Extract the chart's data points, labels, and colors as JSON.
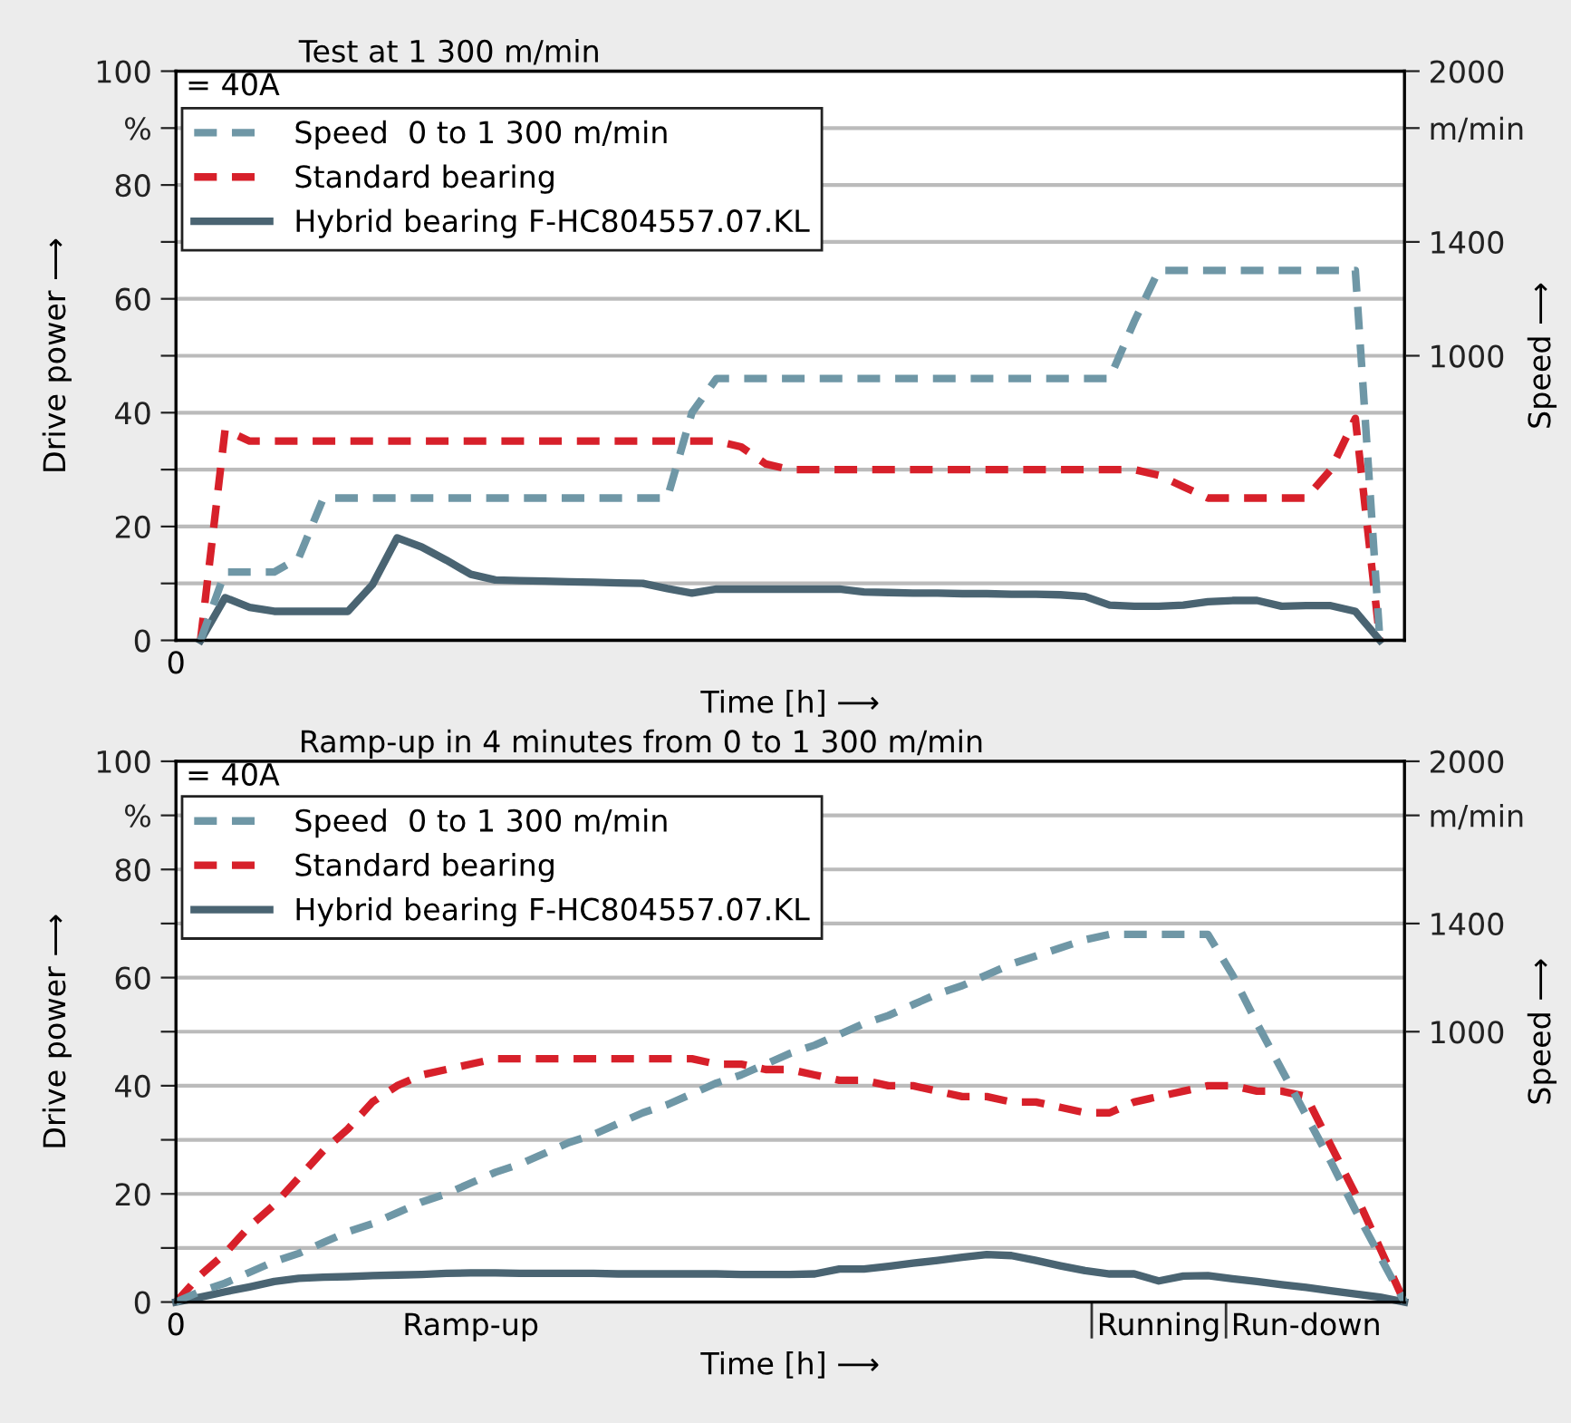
{
  "chart_data": [
    {
      "type": "line",
      "title": "Test at 1 300 m/min",
      "xlabel": "Time [h] ⟶",
      "ylabel": "Drive power ⟶",
      "y2label": "Speed ⟶",
      "annotations": [
        "= 40A"
      ],
      "categories": [
        "0",
        null,
        null,
        null,
        null,
        null,
        null,
        null,
        null,
        null,
        null,
        null,
        null,
        null,
        null,
        null,
        null,
        null,
        null,
        null,
        null,
        null,
        null,
        null,
        null,
        null,
        null,
        null,
        null,
        null,
        null,
        null,
        null,
        null,
        null,
        null,
        null,
        null,
        null,
        null,
        null,
        null,
        null,
        null,
        null,
        null,
        null,
        null,
        null,
        null,
        null
      ],
      "ylim": [
        0,
        100
      ],
      "yticks": [
        0,
        {
          "value": 10,
          "label": null
        },
        20,
        {
          "value": 30,
          "label": null
        },
        40,
        {
          "value": 50,
          "label": null
        },
        60,
        {
          "value": 70,
          "label": null
        },
        80,
        {
          "value": 90,
          "label": "%"
        },
        100
      ],
      "y2lim": [
        0,
        2000
      ],
      "y2ticks": [
        1000,
        1400,
        {
          "value": 1800,
          "label": "m/min"
        },
        2000
      ],
      "grid": "y",
      "legend": "top left",
      "series": [
        {
          "name": "Speed  0 to 1 300 m/min",
          "color": "#6f97a6",
          "line_style": "dashed",
          "axis": "y2",
          "values": [
            null,
            0,
            240,
            240,
            240,
            290,
            500,
            500,
            500,
            500,
            500,
            500,
            500,
            500,
            500,
            500,
            500,
            500,
            500,
            500,
            500,
            800,
            920,
            920,
            920,
            920,
            920,
            920,
            920,
            920,
            920,
            920,
            920,
            920,
            920,
            920,
            920,
            920,
            920,
            1120,
            1300,
            1300,
            1300,
            1300,
            1300,
            1300,
            1300,
            1300,
            1300,
            0,
            null
          ]
        },
        {
          "name": "Standard bearing",
          "color": "#d7202a",
          "line_style": "dashed",
          "values": [
            null,
            0,
            37,
            35,
            35,
            35,
            35,
            35,
            35,
            35,
            35,
            35,
            35,
            35,
            35,
            35,
            35,
            35,
            35,
            35,
            35,
            35,
            35,
            34,
            31,
            30,
            30,
            30,
            30,
            30,
            30,
            30,
            30,
            30,
            30,
            30,
            30,
            30,
            30,
            30,
            29,
            27,
            25,
            25,
            25,
            25,
            25,
            30,
            39,
            0,
            null
          ]
        },
        {
          "name": "Hybrid bearing F-HC804557.07.KL",
          "color": "#4a6472",
          "line_style": "solid",
          "values": [
            null,
            0,
            7.5,
            5.8,
            5.1,
            5.1,
            5.1,
            5.1,
            9.8,
            18,
            16.4,
            14.1,
            11.6,
            10.6,
            10.5,
            10.4,
            10.3,
            10.2,
            10.1,
            10,
            9.1,
            8.3,
            9,
            9,
            9,
            9,
            9,
            9,
            8.5,
            8.4,
            8.3,
            8.3,
            8.2,
            8.2,
            8.1,
            8.1,
            8,
            7.7,
            6.2,
            6,
            6,
            6.2,
            6.8,
            7,
            7,
            6,
            6.1,
            6.1,
            5.1,
            0,
            null
          ]
        }
      ]
    },
    {
      "type": "line",
      "title": "Ramp-up in 4 minutes from 0 to 1 300 m/min",
      "xlabel": "Time [h] ⟶",
      "ylabel": "Drive power ⟶",
      "y2label": "Speed ⟶",
      "annotations": [
        "= 40A"
      ],
      "categories": [
        "0",
        null,
        null,
        null,
        null,
        null,
        null,
        null,
        null,
        null,
        null,
        null,
        "Ramp-up",
        null,
        null,
        null,
        null,
        null,
        null,
        null,
        null,
        null,
        null,
        null,
        null,
        null,
        null,
        null,
        null,
        null,
        null,
        null,
        null,
        null,
        null,
        null,
        null,
        null,
        null,
        null,
        "Running",
        null,
        null,
        null,
        null,
        null,
        "Run-down",
        null,
        null,
        null,
        null
      ],
      "ylim": [
        0,
        100
      ],
      "yticks": [
        0,
        {
          "value": 10,
          "label": null
        },
        20,
        {
          "value": 30,
          "label": null
        },
        40,
        {
          "value": 50,
          "label": null
        },
        60,
        {
          "value": 70,
          "label": null
        },
        80,
        {
          "value": 90,
          "label": "%"
        },
        100
      ],
      "y2lim": [
        0,
        2000
      ],
      "y2ticks": [
        1000,
        1400,
        {
          "value": 1800,
          "label": "m/min"
        },
        2000
      ],
      "grid": "y",
      "legend": "top left",
      "series": [
        {
          "name": "Speed  0 to 1 300 m/min",
          "color": "#6f97a6",
          "line_style": "dashed",
          "axis": "y2",
          "values": [
            0,
            40,
            70,
            110,
            150,
            180,
            220,
            260,
            290,
            330,
            370,
            400,
            440,
            480,
            510,
            550,
            590,
            620,
            660,
            700,
            730,
            770,
            810,
            840,
            880,
            920,
            950,
            990,
            1030,
            1060,
            1100,
            1140,
            1170,
            1210,
            1250,
            1280,
            1310,
            1340,
            1360,
            1360,
            1360,
            1360,
            1360,
            1210,
            1030,
            860,
            690,
            520,
            340,
            170,
            0
          ]
        },
        {
          "name": "Standard bearing",
          "color": "#d7202a",
          "line_style": "dashed",
          "values": [
            0,
            5,
            9,
            14,
            18,
            23,
            28,
            32,
            37,
            40,
            42,
            43,
            44,
            45,
            45,
            45,
            45,
            45,
            45,
            45,
            45,
            45,
            44,
            44,
            43,
            43,
            42,
            41,
            41,
            40,
            40,
            39,
            38,
            38,
            37,
            37,
            36,
            35,
            35,
            37,
            38,
            39,
            40,
            40,
            39,
            39,
            38,
            29,
            20,
            10,
            0
          ]
        },
        {
          "name": "Hybrid bearing F-HC804557.07.KL",
          "color": "#4a6472",
          "line_style": "solid",
          "values": [
            0,
            0.9,
            1.9,
            2.8,
            3.8,
            4.4,
            4.6,
            4.7,
            4.9,
            5,
            5.1,
            5.3,
            5.4,
            5.4,
            5.3,
            5.3,
            5.3,
            5.3,
            5.2,
            5.2,
            5.2,
            5.2,
            5.2,
            5.1,
            5.1,
            5.1,
            5.2,
            6.1,
            6.1,
            6.6,
            7.2,
            7.7,
            8.3,
            8.8,
            8.6,
            7.7,
            6.7,
            5.8,
            5.2,
            5.2,
            3.9,
            4.8,
            4.9,
            4.3,
            3.8,
            3.2,
            2.7,
            2.1,
            1.5,
            0.9,
            0
          ]
        }
      ]
    }
  ]
}
